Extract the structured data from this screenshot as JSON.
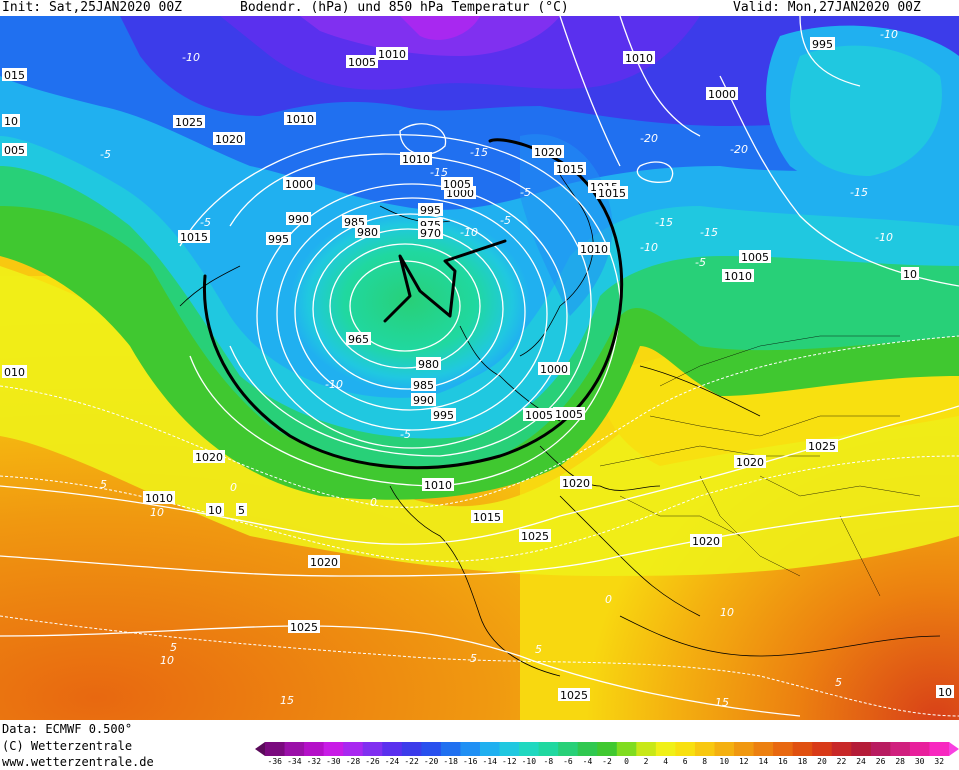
{
  "header": {
    "init": "Init: Sat,25JAN2020 00Z",
    "title": "Bodendr. (hPa) und 850 hPa Temperatur (°C)",
    "valid": "Valid: Mon,27JAN2020 00Z"
  },
  "footer": {
    "data_source": "Data: ECMWF  0.500°",
    "copyright": "(C) Wetterzentrale",
    "url": "www.wetterzentrale.de"
  },
  "colors": {
    "scale": [
      "#5a0a5a",
      "#7a0a7e",
      "#9a10a8",
      "#b410c8",
      "#c81ce6",
      "#a828f0",
      "#8030f0",
      "#5a30ee",
      "#3c3cea",
      "#2850ee",
      "#2070f0",
      "#2090f4",
      "#20b0f0",
      "#20c8e0",
      "#20d8c0",
      "#20d8a0",
      "#28d078",
      "#30c850",
      "#40c830",
      "#80dc20",
      "#c8e818",
      "#f0f018",
      "#f8e010",
      "#f8c810",
      "#f4b010",
      "#f09810",
      "#ec8010",
      "#e86810",
      "#e05010",
      "#d83a18",
      "#c82828",
      "#b41c38",
      "#b81c60",
      "#d0207e",
      "#e8209c",
      "#f828c0",
      "#f840e0"
    ]
  },
  "scale_ticks": [
    "-36",
    "-34",
    "-32",
    "-30",
    "-28",
    "-26",
    "-24",
    "-22",
    "-20",
    "-18",
    "-16",
    "-14",
    "-12",
    "-10",
    "-8",
    "-6",
    "-4",
    "-2",
    "0",
    "2",
    "4",
    "6",
    "8",
    "10",
    "12",
    "14",
    "16",
    "18",
    "20",
    "22",
    "24",
    "26",
    "28",
    "30",
    "32"
  ],
  "isobar_labels": [
    "1005",
    "1010",
    "1010",
    "995",
    "015",
    "10",
    "1025",
    "1020",
    "1010",
    "005",
    "1010",
    "1000",
    "1015",
    "990",
    "985",
    "980",
    "995",
    "1000",
    "1005",
    "995",
    "975",
    "970",
    "1020",
    "1015",
    "1015",
    "1010",
    "1005",
    "1010",
    "10",
    "1000",
    "1015",
    "1005",
    "010",
    "965",
    "980",
    "985",
    "990",
    "995",
    "1000",
    "1005",
    "1020",
    "1010",
    "1020",
    "1025",
    "1020",
    "1010",
    "10",
    "5",
    "1015",
    "1025",
    "1020",
    "1020",
    "1025",
    "1025",
    "10"
  ],
  "isotherm_labels": [
    "-10",
    "-5",
    "-5",
    "-15",
    "-20",
    "-15",
    "-10",
    "-20",
    "-15",
    "-10",
    "-5",
    "-15",
    "-10",
    "-10",
    "-5",
    "-5",
    "0",
    "5",
    "10",
    "5",
    "0",
    "5",
    "5",
    "10",
    "15",
    "15",
    "10",
    "5",
    "0",
    "-5",
    "-10",
    "-15"
  ]
}
